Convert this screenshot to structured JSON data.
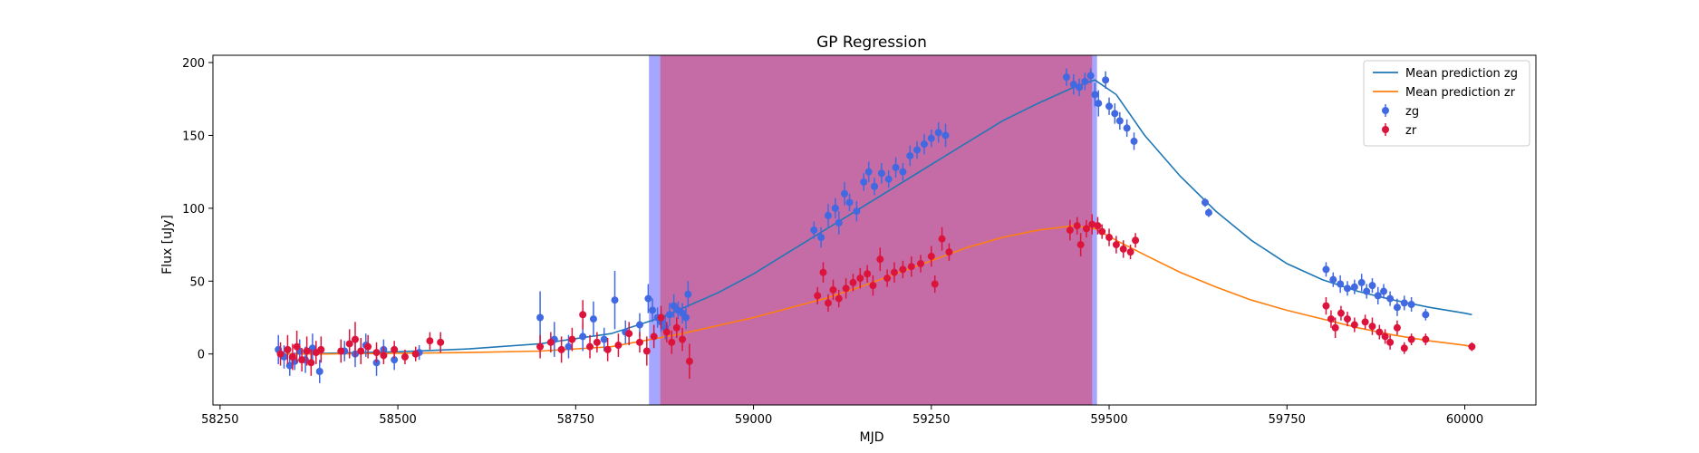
{
  "chart_data": {
    "type": "scatter",
    "title": "GP Regression",
    "xlabel": "MJD",
    "ylabel": "Flux [uJy]",
    "xlim": [
      58240,
      60100
    ],
    "ylim": [
      -35,
      205
    ],
    "xticks": [
      58250,
      58500,
      58750,
      59000,
      59250,
      59500,
      59750,
      60000
    ],
    "yticks": [
      0,
      50,
      100,
      150,
      200
    ],
    "grid": false,
    "legend_position": "top-right",
    "shaded_regions": [
      {
        "x0": 58853,
        "x1": 59483,
        "color": "#0000ff",
        "opacity": 0.35
      },
      {
        "x0": 58869,
        "x1": 59476,
        "color": "#ff0000",
        "opacity": 0.35
      }
    ],
    "lines": [
      {
        "name": "Mean prediction zg",
        "color": "#1f77b4",
        "x": [
          58330,
          58400,
          58500,
          58600,
          58700,
          58800,
          58870,
          58950,
          59000,
          59050,
          59100,
          59150,
          59200,
          59250,
          59300,
          59350,
          59400,
          59450,
          59480,
          59510,
          59550,
          59600,
          59650,
          59700,
          59750,
          59800,
          59850,
          59900,
          59950,
          60000,
          60010
        ],
        "y": [
          0,
          0.5,
          1.5,
          3.5,
          7,
          14,
          25,
          42,
          55,
          70,
          85,
          100,
          115,
          130,
          145,
          160,
          172,
          183,
          188,
          178,
          150,
          122,
          98,
          78,
          62,
          51,
          43,
          37,
          32,
          28,
          27
        ]
      },
      {
        "name": "Mean prediction zr",
        "color": "#ff7f0e",
        "x": [
          58330,
          58400,
          58500,
          58600,
          58700,
          58800,
          58900,
          59000,
          59100,
          59150,
          59200,
          59250,
          59300,
          59350,
          59400,
          59450,
          59480,
          59510,
          59550,
          59600,
          59650,
          59700,
          59750,
          59800,
          59850,
          59900,
          59950,
          60000,
          60010
        ],
        "y": [
          0,
          0,
          0.5,
          1,
          2,
          5,
          14,
          25,
          38,
          46,
          55,
          64,
          73,
          80,
          85,
          88,
          86,
          78,
          68,
          56,
          46,
          37,
          30,
          24,
          18,
          13,
          9,
          6,
          5
        ]
      }
    ],
    "series": [
      {
        "name": "zg",
        "color": "#4169e1",
        "points": [
          [
            58332,
            3,
            10
          ],
          [
            58340,
            -2,
            8
          ],
          [
            58348,
            -8,
            7
          ],
          [
            58355,
            -5,
            6
          ],
          [
            58362,
            2,
            8
          ],
          [
            58370,
            -4,
            9
          ],
          [
            58380,
            4,
            10
          ],
          [
            58390,
            -12,
            8
          ],
          [
            58425,
            2,
            7
          ],
          [
            58440,
            0,
            9
          ],
          [
            58455,
            6,
            8
          ],
          [
            58470,
            -6,
            9
          ],
          [
            58480,
            3,
            7
          ],
          [
            58495,
            -4,
            7
          ],
          [
            58530,
            1,
            5
          ],
          [
            58700,
            25,
            18
          ],
          [
            58720,
            10,
            12
          ],
          [
            58740,
            5,
            8
          ],
          [
            58760,
            12,
            10
          ],
          [
            58775,
            24,
            12
          ],
          [
            58790,
            10,
            8
          ],
          [
            58805,
            37,
            20
          ],
          [
            58820,
            15,
            8
          ],
          [
            58840,
            20,
            8
          ],
          [
            58852,
            38,
            10
          ],
          [
            58858,
            30,
            8
          ],
          [
            58865,
            25,
            7
          ],
          [
            58870,
            22,
            7
          ],
          [
            58876,
            18,
            8
          ],
          [
            58882,
            27,
            8
          ],
          [
            58888,
            33,
            8
          ],
          [
            58894,
            30,
            6
          ],
          [
            58900,
            28,
            7
          ],
          [
            58908,
            41,
            9
          ],
          [
            58905,
            25,
            8
          ],
          [
            59085,
            85,
            6
          ],
          [
            59095,
            80,
            7
          ],
          [
            59105,
            95,
            8
          ],
          [
            59115,
            100,
            7
          ],
          [
            59120,
            90,
            8
          ],
          [
            59128,
            110,
            8
          ],
          [
            59135,
            104,
            6
          ],
          [
            59145,
            98,
            7
          ],
          [
            59155,
            118,
            6
          ],
          [
            59162,
            125,
            7
          ],
          [
            59170,
            115,
            6
          ],
          [
            59180,
            124,
            7
          ],
          [
            59190,
            120,
            6
          ],
          [
            59200,
            128,
            7
          ],
          [
            59210,
            125,
            6
          ],
          [
            59220,
            136,
            7
          ],
          [
            59230,
            140,
            6
          ],
          [
            59240,
            144,
            7
          ],
          [
            59250,
            148,
            6
          ],
          [
            59260,
            152,
            7
          ],
          [
            59270,
            150,
            8
          ],
          [
            59440,
            190,
            6
          ],
          [
            59450,
            185,
            7
          ],
          [
            59458,
            183,
            6
          ],
          [
            59466,
            187,
            6
          ],
          [
            59474,
            191,
            5
          ],
          [
            59480,
            178,
            8
          ],
          [
            59485,
            172,
            9
          ],
          [
            59495,
            188,
            6
          ],
          [
            59500,
            170,
            6
          ],
          [
            59508,
            165,
            7
          ],
          [
            59515,
            160,
            6
          ],
          [
            59525,
            155,
            6
          ],
          [
            59535,
            146,
            6
          ],
          [
            59635,
            104,
            3
          ],
          [
            59640,
            97,
            3
          ],
          [
            59805,
            58,
            5
          ],
          [
            59815,
            51,
            5
          ],
          [
            59825,
            48,
            6
          ],
          [
            59835,
            45,
            5
          ],
          [
            59845,
            46,
            5
          ],
          [
            59855,
            49,
            6
          ],
          [
            59862,
            43,
            5
          ],
          [
            59870,
            47,
            5
          ],
          [
            59878,
            40,
            6
          ],
          [
            59886,
            43,
            5
          ],
          [
            59895,
            38,
            5
          ],
          [
            59905,
            32,
            6
          ],
          [
            59915,
            35,
            5
          ],
          [
            59925,
            34,
            5
          ],
          [
            59945,
            27,
            4
          ]
        ]
      },
      {
        "name": "zr",
        "color": "#dc143c",
        "points": [
          [
            58335,
            0,
            8
          ],
          [
            58345,
            3,
            10
          ],
          [
            58352,
            -2,
            9
          ],
          [
            58358,
            5,
            11
          ],
          [
            58365,
            -4,
            8
          ],
          [
            58372,
            2,
            10
          ],
          [
            58378,
            -6,
            9
          ],
          [
            58385,
            1,
            8
          ],
          [
            58392,
            3,
            9
          ],
          [
            58420,
            2,
            8
          ],
          [
            58432,
            7,
            10
          ],
          [
            58440,
            10,
            12
          ],
          [
            58448,
            2,
            9
          ],
          [
            58458,
            5,
            8
          ],
          [
            58470,
            1,
            7
          ],
          [
            58480,
            -1,
            6
          ],
          [
            58495,
            3,
            6
          ],
          [
            58510,
            -2,
            5
          ],
          [
            58525,
            0,
            5
          ],
          [
            58545,
            9,
            6
          ],
          [
            58560,
            8,
            7
          ],
          [
            58700,
            5,
            8
          ],
          [
            58715,
            8,
            7
          ],
          [
            58730,
            3,
            9
          ],
          [
            58745,
            10,
            8
          ],
          [
            58760,
            27,
            10
          ],
          [
            58770,
            5,
            8
          ],
          [
            58780,
            8,
            7
          ],
          [
            58795,
            3,
            8
          ],
          [
            58810,
            6,
            8
          ],
          [
            58825,
            14,
            8
          ],
          [
            58840,
            8,
            7
          ],
          [
            58850,
            2,
            10
          ],
          [
            58860,
            12,
            8
          ],
          [
            58870,
            25,
            8
          ],
          [
            58878,
            15,
            7
          ],
          [
            58885,
            8,
            8
          ],
          [
            58892,
            18,
            7
          ],
          [
            58900,
            10,
            8
          ],
          [
            58910,
            -5,
            12
          ],
          [
            59090,
            40,
            6
          ],
          [
            59098,
            56,
            7
          ],
          [
            59105,
            35,
            6
          ],
          [
            59112,
            44,
            7
          ],
          [
            59120,
            38,
            6
          ],
          [
            59130,
            45,
            7
          ],
          [
            59140,
            49,
            6
          ],
          [
            59150,
            52,
            7
          ],
          [
            59160,
            55,
            6
          ],
          [
            59168,
            47,
            7
          ],
          [
            59178,
            65,
            8
          ],
          [
            59188,
            52,
            6
          ],
          [
            59198,
            56,
            7
          ],
          [
            59210,
            58,
            6
          ],
          [
            59222,
            60,
            7
          ],
          [
            59235,
            62,
            6
          ],
          [
            59250,
            67,
            7
          ],
          [
            59255,
            48,
            6
          ],
          [
            59265,
            79,
            8
          ],
          [
            59275,
            70,
            6
          ],
          [
            59445,
            85,
            7
          ],
          [
            59455,
            88,
            6
          ],
          [
            59460,
            75,
            8
          ],
          [
            59468,
            86,
            6
          ],
          [
            59476,
            89,
            7
          ],
          [
            59484,
            88,
            6
          ],
          [
            59490,
            84,
            5
          ],
          [
            59500,
            80,
            6
          ],
          [
            59510,
            75,
            6
          ],
          [
            59520,
            72,
            6
          ],
          [
            59530,
            70,
            5
          ],
          [
            59537,
            78,
            5
          ],
          [
            59805,
            33,
            6
          ],
          [
            59812,
            24,
            6
          ],
          [
            59818,
            18,
            7
          ],
          [
            59826,
            28,
            5
          ],
          [
            59835,
            24,
            5
          ],
          [
            59845,
            20,
            5
          ],
          [
            59860,
            22,
            5
          ],
          [
            59870,
            19,
            6
          ],
          [
            59880,
            15,
            5
          ],
          [
            59888,
            12,
            5
          ],
          [
            59895,
            8,
            5
          ],
          [
            59905,
            18,
            5
          ],
          [
            59915,
            4,
            4
          ],
          [
            59925,
            10,
            4
          ],
          [
            59945,
            10,
            4
          ],
          [
            60010,
            5,
            3
          ]
        ]
      }
    ],
    "legend": [
      {
        "label": "Mean prediction zg",
        "kind": "line",
        "color": "#1f77b4"
      },
      {
        "label": "Mean prediction zr",
        "kind": "line",
        "color": "#ff7f0e"
      },
      {
        "label": "zg",
        "kind": "errorbar",
        "color": "#4169e1"
      },
      {
        "label": "zr",
        "kind": "errorbar",
        "color": "#dc143c"
      }
    ]
  }
}
